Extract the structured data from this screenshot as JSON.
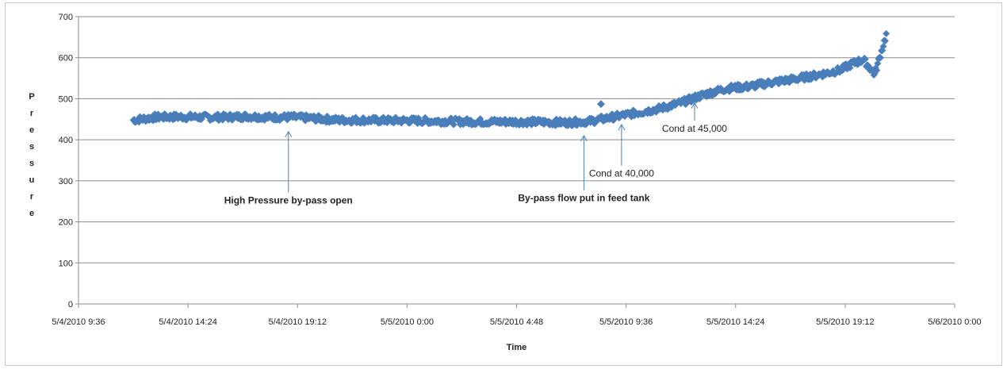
{
  "chart_data": {
    "type": "scatter",
    "title": "",
    "xlabel": "Time",
    "ylabel": "Pressure",
    "ylabel_letters": [
      "P",
      "r",
      "e",
      "s",
      "s",
      "u",
      "r",
      "e"
    ],
    "ylim": [
      0,
      700
    ],
    "yticks": [
      0,
      100,
      200,
      300,
      400,
      500,
      600,
      700
    ],
    "xlim": [
      "5/4/2010 9:36",
      "5/6/2010 0:00"
    ],
    "xticks": [
      "5/4/2010 9:36",
      "5/4/2010 14:24",
      "5/4/2010 19:12",
      "5/5/2010 0:00",
      "5/5/2010 4:48",
      "5/5/2010 9:36",
      "5/5/2010 14:24",
      "5/5/2010 19:12",
      "5/6/2010 0:00"
    ],
    "grid": true,
    "legend": "none",
    "marker_color": "#4a7ebb",
    "series": [
      {
        "x": [
          "5/4/2010 12:00",
          "5/4/2010 13:00",
          "5/4/2010 14:00",
          "5/4/2010 15:00",
          "5/4/2010 16:00",
          "5/4/2010 17:00",
          "5/4/2010 18:00",
          "5/4/2010 19:00",
          "5/4/2010 20:00",
          "5/4/2010 21:00",
          "5/4/2010 22:00",
          "5/4/2010 23:00",
          "5/5/2010 0:00",
          "5/5/2010 1:00",
          "5/5/2010 2:00",
          "5/5/2010 3:00",
          "5/5/2010 4:00",
          "5/5/2010 5:00",
          "5/5/2010 6:00",
          "5/5/2010 7:00",
          "5/5/2010 8:00",
          "5/5/2010 9:00",
          "5/5/2010 10:00",
          "5/5/2010 11:00",
          "5/5/2010 12:00",
          "5/5/2010 13:00",
          "5/5/2010 14:00",
          "5/5/2010 15:00",
          "5/5/2010 16:00",
          "5/5/2010 17:00",
          "5/5/2010 18:00",
          "5/5/2010 19:00",
          "5/5/2010 19:30",
          "5/5/2010 20:00",
          "5/5/2010 20:30",
          "5/5/2010 21:00"
        ],
        "values": [
          448,
          455,
          456,
          455,
          455,
          457,
          455,
          455,
          452,
          448,
          448,
          447,
          447,
          446,
          445,
          444,
          444,
          444,
          443,
          442,
          445,
          455,
          465,
          475,
          490,
          510,
          525,
          530,
          540,
          548,
          558,
          570,
          585,
          595,
          560,
          655
        ]
      }
    ],
    "outlier": {
      "x": "5/5/2010 8:30",
      "y": 487
    },
    "annotations": [
      {
        "text": "High Pressure  by-pass open",
        "x": "5/4/2010 18:48",
        "y": 420,
        "label_y": 245,
        "bold": true
      },
      {
        "text": "By-pass flow put in feed tank",
        "x": "5/5/2010 7:45",
        "y": 410,
        "label_y": 250,
        "bold": true
      },
      {
        "text": "Cond at 40,000",
        "x": "5/5/2010 9:24",
        "y": 437,
        "label_y": 310,
        "bold": false
      },
      {
        "text": "Cond at 45,000",
        "x": "5/5/2010 12:36",
        "y": 490,
        "label_y": 420,
        "bold": false
      }
    ]
  }
}
